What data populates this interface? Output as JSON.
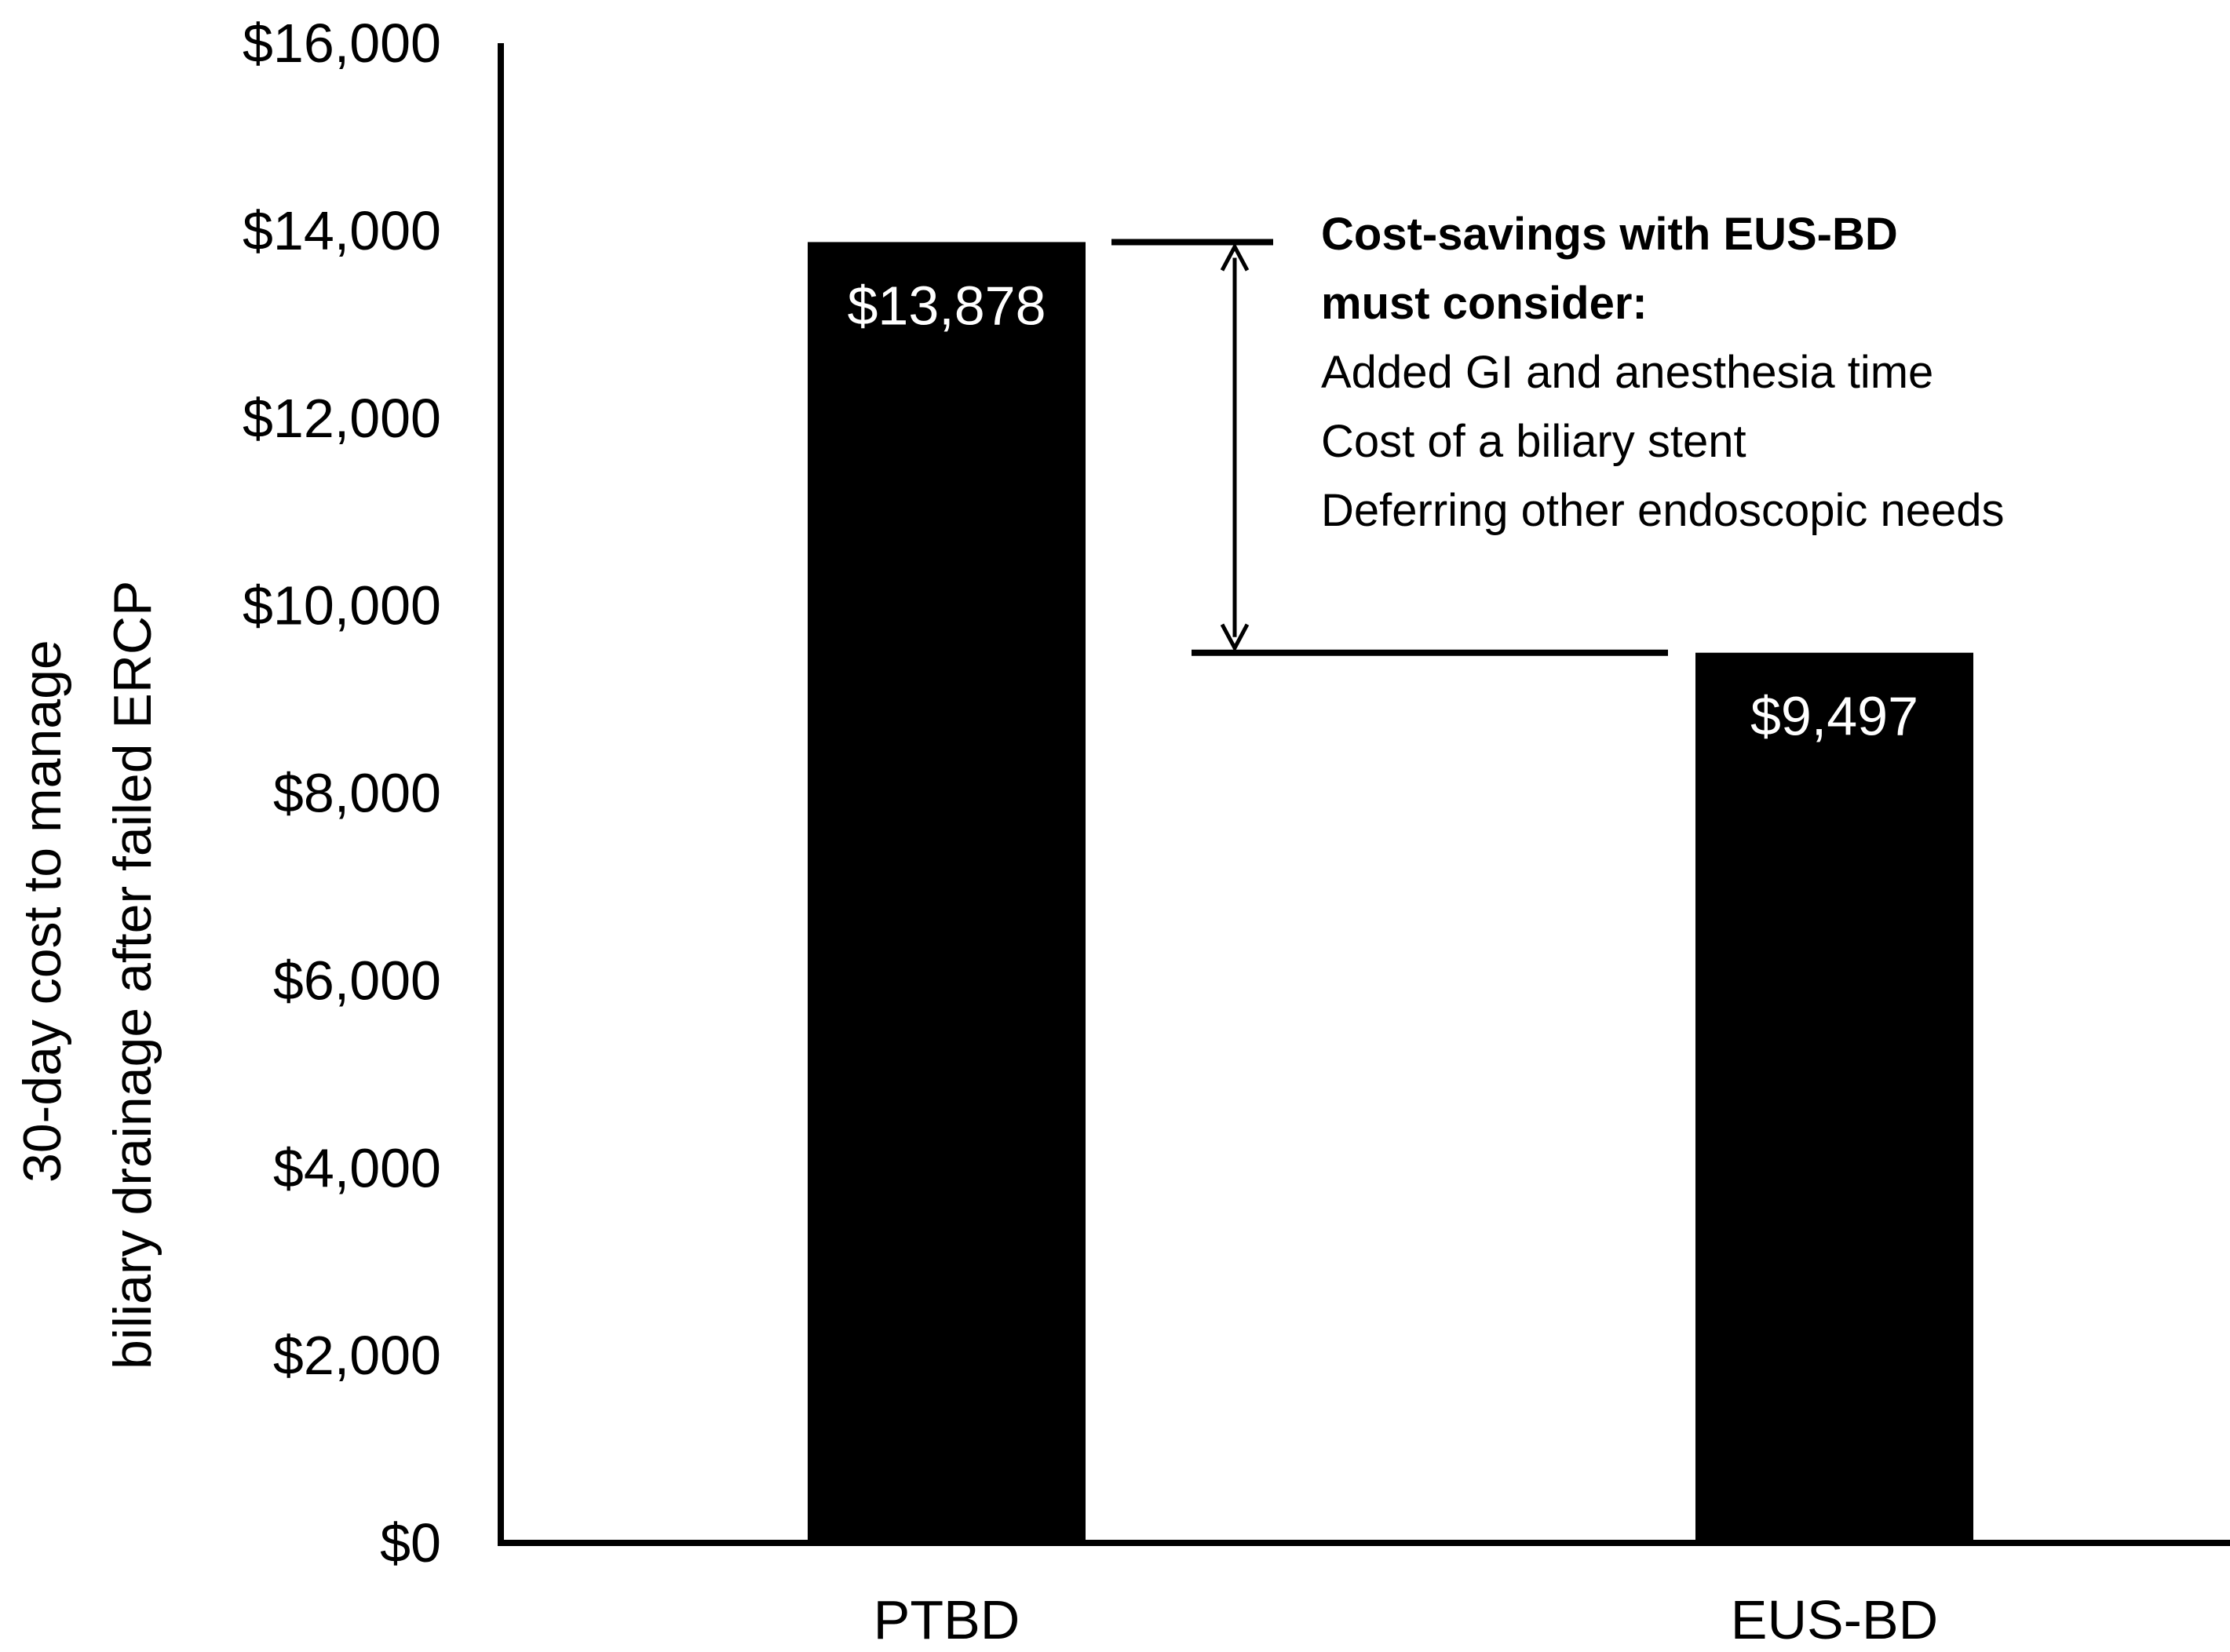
{
  "chart_data": {
    "type": "bar",
    "categories": [
      "PTBD",
      "EUS-BD"
    ],
    "values": [
      13878,
      9497
    ],
    "value_labels": [
      "$13,878",
      "$9,497"
    ],
    "ylabel": [
      "30-day cost to manage",
      "biliary drainage after failed ERCP"
    ],
    "xlabel": "",
    "ylim": [
      0,
      16000
    ],
    "yticks": [
      0,
      2000,
      4000,
      6000,
      8000,
      10000,
      12000,
      14000,
      16000
    ],
    "ytick_labels": [
      "$0",
      "$2,000",
      "$4,000",
      "$6,000",
      "$8,000",
      "$10,000",
      "$12,000",
      "$14,000",
      "$16,000"
    ],
    "grid": false,
    "bar_color": "#000000",
    "value_label_color": "#ffffff",
    "annotation": {
      "title_lines": [
        "Cost-savings with EUS-BD",
        "must consider:"
      ],
      "items": [
        "Added GI and anesthesia time",
        "Cost of a biliary stent",
        "Deferring other endoscopic needs"
      ],
      "marker": "double-headed-arrow between bar tops"
    }
  }
}
